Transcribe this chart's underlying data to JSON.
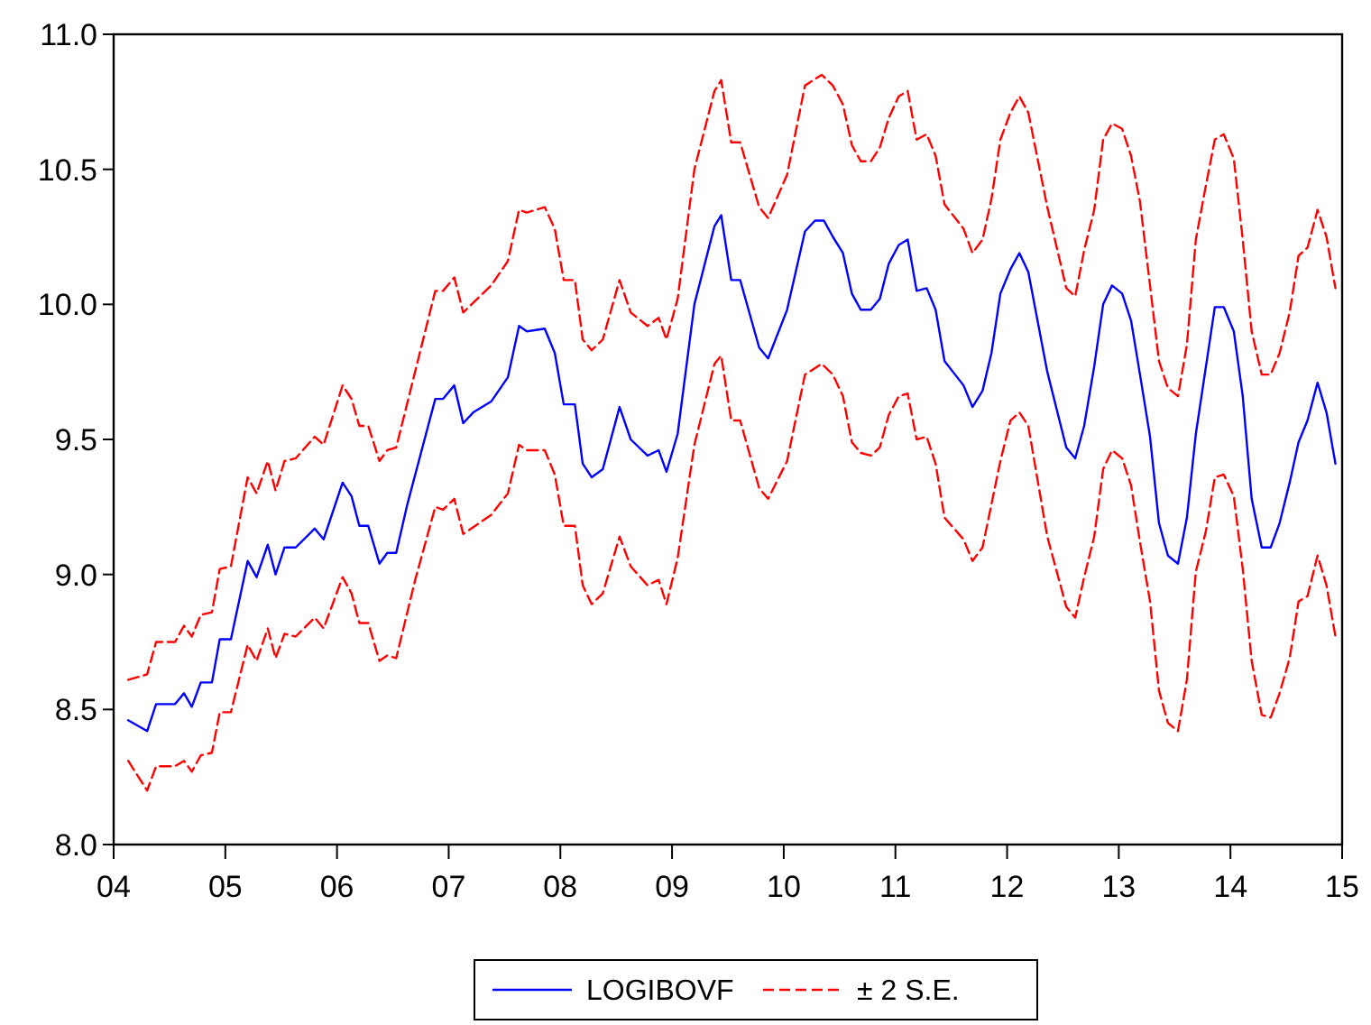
{
  "chart_data": {
    "type": "line",
    "xlim": [
      2004,
      2015
    ],
    "ylim": [
      8,
      11
    ],
    "xticks": [
      {
        "value": 2004,
        "label": "04"
      },
      {
        "value": 2005,
        "label": "05"
      },
      {
        "value": 2006,
        "label": "06"
      },
      {
        "value": 2007,
        "label": "07"
      },
      {
        "value": 2008,
        "label": "08"
      },
      {
        "value": 2009,
        "label": "09"
      },
      {
        "value": 2010,
        "label": "10"
      },
      {
        "value": 2011,
        "label": "11"
      },
      {
        "value": 2012,
        "label": "12"
      },
      {
        "value": 2013,
        "label": "13"
      },
      {
        "value": 2014,
        "label": "14"
      },
      {
        "value": 2015,
        "label": "15"
      }
    ],
    "yticks": [
      {
        "value": 8,
        "label": "8.0"
      },
      {
        "value": 8.5,
        "label": "8.5"
      },
      {
        "value": 9,
        "label": "9.0"
      },
      {
        "value": 9.5,
        "label": "9.5"
      },
      {
        "value": 10,
        "label": "10.0"
      },
      {
        "value": 10.5,
        "label": "10.5"
      },
      {
        "value": 11,
        "label": "11.0"
      }
    ],
    "grid": false,
    "legend": "bottom",
    "marker": "none",
    "series": [
      {
        "name": "LOGIBOVF",
        "color": "#0000ff",
        "line_style": "solid",
        "x": [
          2004.13,
          2004.3,
          2004.38,
          2004.55,
          2004.63,
          2004.7,
          2004.78,
          2004.88,
          2004.95,
          2005.05,
          2005.2,
          2005.28,
          2005.38,
          2005.45,
          2005.53,
          2005.63,
          2005.8,
          2005.88,
          2006.05,
          2006.13,
          2006.2,
          2006.28,
          2006.38,
          2006.45,
          2006.53,
          2006.63,
          2006.88,
          2006.95,
          2007.05,
          2007.13,
          2007.22,
          2007.38,
          2007.53,
          2007.63,
          2007.7,
          2007.86,
          2007.95,
          2008.03,
          2008.13,
          2008.2,
          2008.28,
          2008.38,
          2008.53,
          2008.63,
          2008.78,
          2008.88,
          2008.95,
          2009.05,
          2009.2,
          2009.38,
          2009.44,
          2009.53,
          2009.61,
          2009.78,
          2009.86,
          2010.03,
          2010.19,
          2010.28,
          2010.36,
          2010.44,
          2010.53,
          2010.61,
          2010.69,
          2010.78,
          2010.86,
          2010.94,
          2011.03,
          2011.11,
          2011.19,
          2011.28,
          2011.36,
          2011.44,
          2011.61,
          2011.69,
          2011.78,
          2011.86,
          2011.94,
          2012.03,
          2012.11,
          2012.19,
          2012.36,
          2012.53,
          2012.61,
          2012.69,
          2012.78,
          2012.86,
          2012.94,
          2013.03,
          2013.11,
          2013.19,
          2013.28,
          2013.36,
          2013.44,
          2013.53,
          2013.61,
          2013.69,
          2013.86,
          2013.94,
          2014.03,
          2014.11,
          2014.19,
          2014.28,
          2014.36,
          2014.44,
          2014.53,
          2014.61,
          2014.69,
          2014.78,
          2014.86,
          2014.94
        ],
        "values": [
          8.46,
          8.42,
          8.52,
          8.52,
          8.56,
          8.51,
          8.6,
          8.6,
          8.76,
          8.76,
          9.05,
          8.99,
          9.11,
          9.0,
          9.1,
          9.1,
          9.17,
          9.13,
          9.34,
          9.29,
          9.18,
          9.18,
          9.04,
          9.08,
          9.08,
          9.26,
          9.65,
          9.65,
          9.7,
          9.56,
          9.6,
          9.64,
          9.73,
          9.92,
          9.9,
          9.91,
          9.82,
          9.63,
          9.63,
          9.41,
          9.36,
          9.39,
          9.62,
          9.5,
          9.44,
          9.46,
          9.38,
          9.52,
          10.0,
          10.29,
          10.33,
          10.09,
          10.09,
          9.84,
          9.8,
          9.98,
          10.27,
          10.31,
          10.31,
          10.25,
          10.19,
          10.04,
          9.98,
          9.98,
          10.02,
          10.15,
          10.22,
          10.24,
          10.05,
          10.06,
          9.98,
          9.79,
          9.7,
          9.62,
          9.68,
          9.82,
          10.04,
          10.13,
          10.19,
          10.12,
          9.75,
          9.47,
          9.43,
          9.55,
          9.77,
          10.0,
          10.07,
          10.04,
          9.94,
          9.74,
          9.51,
          9.19,
          9.07,
          9.04,
          9.21,
          9.52,
          9.99,
          9.99,
          9.9,
          9.66,
          9.28,
          9.1,
          9.1,
          9.19,
          9.34,
          9.49,
          9.57,
          9.71,
          9.6,
          9.41
        ]
      },
      {
        "name": "± 2 S.E.",
        "color": "#ff0000",
        "line_style": "dashed",
        "x": [
          2004.13,
          2004.3,
          2004.38,
          2004.55,
          2004.63,
          2004.7,
          2004.78,
          2004.88,
          2004.95,
          2005.05,
          2005.2,
          2005.28,
          2005.38,
          2005.45,
          2005.53,
          2005.63,
          2005.8,
          2005.88,
          2006.05,
          2006.13,
          2006.2,
          2006.28,
          2006.38,
          2006.45,
          2006.53,
          2006.88,
          2006.95,
          2007.05,
          2007.13,
          2007.38,
          2007.53,
          2007.63,
          2007.7,
          2007.86,
          2007.95,
          2008.03,
          2008.13,
          2008.2,
          2008.28,
          2008.38,
          2008.53,
          2008.63,
          2008.78,
          2008.88,
          2008.95,
          2009.05,
          2009.2,
          2009.38,
          2009.44,
          2009.53,
          2009.61,
          2009.78,
          2009.86,
          2010.03,
          2010.19,
          2010.34,
          2010.44,
          2010.53,
          2010.61,
          2010.69,
          2010.78,
          2010.86,
          2010.94,
          2011.03,
          2011.11,
          2011.19,
          2011.28,
          2011.36,
          2011.44,
          2011.61,
          2011.69,
          2011.78,
          2011.86,
          2011.94,
          2012.03,
          2012.11,
          2012.19,
          2012.36,
          2012.53,
          2012.61,
          2012.69,
          2012.78,
          2012.86,
          2012.94,
          2013.03,
          2013.11,
          2013.19,
          2013.28,
          2013.36,
          2013.44,
          2013.53,
          2013.61,
          2013.69,
          2013.78,
          2013.86,
          2013.94,
          2014.03,
          2014.11,
          2014.19,
          2014.28,
          2014.36,
          2014.44,
          2014.53,
          2014.61,
          2014.69,
          2014.78,
          2014.86,
          2014.94
        ],
        "values": [
          8.61,
          8.63,
          8.75,
          8.75,
          8.81,
          8.77,
          8.85,
          8.86,
          9.02,
          9.03,
          9.36,
          9.3,
          9.42,
          9.31,
          9.42,
          9.43,
          9.51,
          9.48,
          9.7,
          9.65,
          9.55,
          9.55,
          9.42,
          9.46,
          9.47,
          10.05,
          10.05,
          10.1,
          9.97,
          10.07,
          10.16,
          10.35,
          10.34,
          10.36,
          10.28,
          10.09,
          10.09,
          9.87,
          9.83,
          9.87,
          10.09,
          9.97,
          9.92,
          9.95,
          9.87,
          10.02,
          10.5,
          10.79,
          10.83,
          10.6,
          10.6,
          10.36,
          10.32,
          10.48,
          10.81,
          10.85,
          10.81,
          10.74,
          10.59,
          10.53,
          10.53,
          10.58,
          10.69,
          10.77,
          10.79,
          10.61,
          10.63,
          10.55,
          10.37,
          10.28,
          10.19,
          10.24,
          10.39,
          10.61,
          10.71,
          10.77,
          10.71,
          10.36,
          10.06,
          10.03,
          10.2,
          10.35,
          10.61,
          10.67,
          10.65,
          10.55,
          10.38,
          10.07,
          9.79,
          9.69,
          9.66,
          9.85,
          10.24,
          10.44,
          10.61,
          10.63,
          10.54,
          10.24,
          9.9,
          9.74,
          9.74,
          9.82,
          9.97,
          10.18,
          10.21,
          10.35,
          10.25,
          10.06
        ]
      },
      {
        "color": "#ff0000",
        "line_style": "dashed",
        "x": [
          2004.13,
          2004.3,
          2004.38,
          2004.55,
          2004.63,
          2004.7,
          2004.78,
          2004.88,
          2004.95,
          2005.05,
          2005.2,
          2005.28,
          2005.38,
          2005.45,
          2005.53,
          2005.63,
          2005.8,
          2005.88,
          2006.05,
          2006.13,
          2006.2,
          2006.28,
          2006.38,
          2006.45,
          2006.53,
          2006.7,
          2006.88,
          2006.95,
          2007.05,
          2007.13,
          2007.38,
          2007.53,
          2007.63,
          2007.7,
          2007.86,
          2007.95,
          2008.03,
          2008.13,
          2008.2,
          2008.28,
          2008.38,
          2008.53,
          2008.63,
          2008.78,
          2008.88,
          2008.95,
          2009.05,
          2009.2,
          2009.38,
          2009.44,
          2009.53,
          2009.61,
          2009.78,
          2009.86,
          2010.03,
          2010.19,
          2010.34,
          2010.44,
          2010.53,
          2010.61,
          2010.69,
          2010.78,
          2010.86,
          2010.94,
          2011.03,
          2011.11,
          2011.19,
          2011.28,
          2011.36,
          2011.44,
          2011.61,
          2011.69,
          2011.78,
          2011.86,
          2011.94,
          2012.03,
          2012.11,
          2012.19,
          2012.36,
          2012.53,
          2012.61,
          2012.69,
          2012.78,
          2012.86,
          2012.94,
          2013.03,
          2013.11,
          2013.19,
          2013.28,
          2013.36,
          2013.44,
          2013.53,
          2013.61,
          2013.69,
          2013.78,
          2013.86,
          2013.94,
          2014.03,
          2014.11,
          2014.19,
          2014.28,
          2014.36,
          2014.44,
          2014.53,
          2014.61,
          2014.69,
          2014.78,
          2014.86,
          2014.94
        ],
        "values": [
          8.31,
          8.2,
          8.29,
          8.29,
          8.31,
          8.27,
          8.33,
          8.34,
          8.49,
          8.49,
          8.74,
          8.68,
          8.8,
          8.69,
          8.78,
          8.77,
          8.84,
          8.8,
          8.99,
          8.93,
          8.82,
          8.82,
          8.68,
          8.7,
          8.69,
          8.98,
          9.25,
          9.24,
          9.28,
          9.15,
          9.22,
          9.3,
          9.48,
          9.46,
          9.46,
          9.37,
          9.18,
          9.18,
          8.96,
          8.89,
          8.93,
          9.14,
          9.03,
          8.96,
          8.98,
          8.89,
          9.06,
          9.48,
          9.78,
          9.81,
          9.57,
          9.57,
          9.32,
          9.28,
          9.42,
          9.74,
          9.78,
          9.74,
          9.66,
          9.49,
          9.45,
          9.44,
          9.47,
          9.59,
          9.66,
          9.67,
          9.5,
          9.51,
          9.41,
          9.21,
          9.13,
          9.05,
          9.1,
          9.26,
          9.42,
          9.57,
          9.6,
          9.55,
          9.14,
          8.88,
          8.84,
          8.99,
          9.14,
          9.39,
          9.46,
          9.43,
          9.33,
          9.12,
          8.9,
          8.57,
          8.45,
          8.42,
          8.61,
          9.01,
          9.16,
          9.36,
          9.37,
          9.29,
          9.02,
          8.68,
          8.48,
          8.47,
          8.56,
          8.69,
          8.9,
          8.92,
          9.07,
          8.96,
          8.77
        ]
      }
    ]
  }
}
